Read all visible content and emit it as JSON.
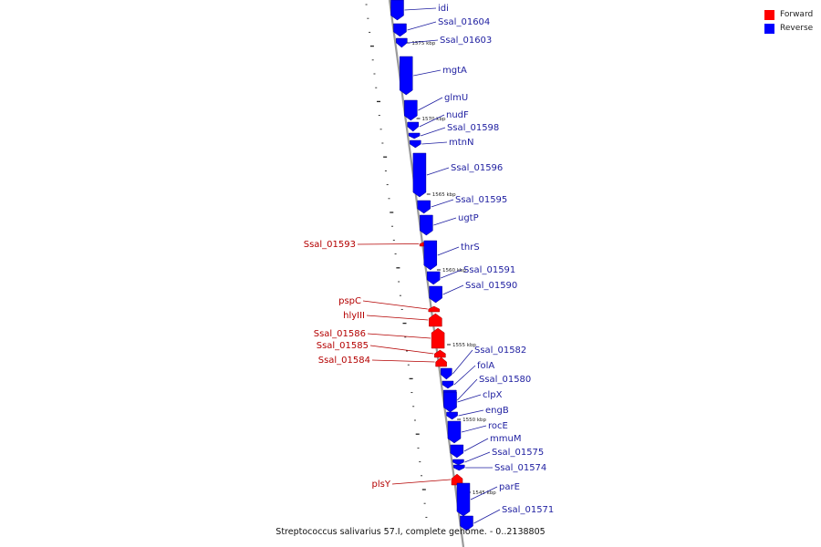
{
  "legend": {
    "forward": {
      "label": "Forward",
      "color": "#ff0000"
    },
    "reverse": {
      "label": "Reverse",
      "color": "#0000ff"
    }
  },
  "caption": "Streptococcus salivarius 57.I, complete genome. - 0..2138805",
  "colors": {
    "forward_label": "#b40000",
    "reverse_label": "#1e1ea0",
    "axis": "#9a9a9a"
  },
  "ticks": [
    {
      "label": "1575 kbp"
    },
    {
      "label": "1570 kbp"
    },
    {
      "label": "1565 kbp"
    },
    {
      "label": "1560 kbp"
    },
    {
      "label": "1555 kbp"
    },
    {
      "label": "1550 kbp"
    },
    {
      "label": "1545 kbp"
    }
  ],
  "genes": [
    {
      "name": "idi",
      "strand": "reverse"
    },
    {
      "name": "Ssal_01604",
      "strand": "reverse"
    },
    {
      "name": "Ssal_01603",
      "strand": "reverse"
    },
    {
      "name": "mgtA",
      "strand": "reverse"
    },
    {
      "name": "glmU",
      "strand": "reverse"
    },
    {
      "name": "nudF",
      "strand": "reverse"
    },
    {
      "name": "Ssal_01598",
      "strand": "reverse"
    },
    {
      "name": "mtnN",
      "strand": "reverse"
    },
    {
      "name": "Ssal_01596",
      "strand": "reverse"
    },
    {
      "name": "Ssal_01595",
      "strand": "reverse"
    },
    {
      "name": "ugtP",
      "strand": "reverse"
    },
    {
      "name": "Ssal_01593",
      "strand": "forward"
    },
    {
      "name": "thrS",
      "strand": "reverse"
    },
    {
      "name": "Ssal_01591",
      "strand": "reverse"
    },
    {
      "name": "Ssal_01590",
      "strand": "reverse"
    },
    {
      "name": "pspC",
      "strand": "forward"
    },
    {
      "name": "hlyIII",
      "strand": "forward"
    },
    {
      "name": "Ssal_01586",
      "strand": "forward"
    },
    {
      "name": "Ssal_01585",
      "strand": "forward"
    },
    {
      "name": "Ssal_01584",
      "strand": "forward"
    },
    {
      "name": "Ssal_01582",
      "strand": "reverse"
    },
    {
      "name": "folA",
      "strand": "reverse"
    },
    {
      "name": "Ssal_01580",
      "strand": "reverse"
    },
    {
      "name": "clpX",
      "strand": "reverse"
    },
    {
      "name": "engB",
      "strand": "reverse"
    },
    {
      "name": "rocE",
      "strand": "reverse"
    },
    {
      "name": "mmuM",
      "strand": "reverse"
    },
    {
      "name": "Ssal_01575",
      "strand": "reverse"
    },
    {
      "name": "Ssal_01574",
      "strand": "reverse"
    },
    {
      "name": "plsY",
      "strand": "forward"
    },
    {
      "name": "parE",
      "strand": "reverse"
    },
    {
      "name": "Ssal_01571",
      "strand": "reverse"
    }
  ]
}
